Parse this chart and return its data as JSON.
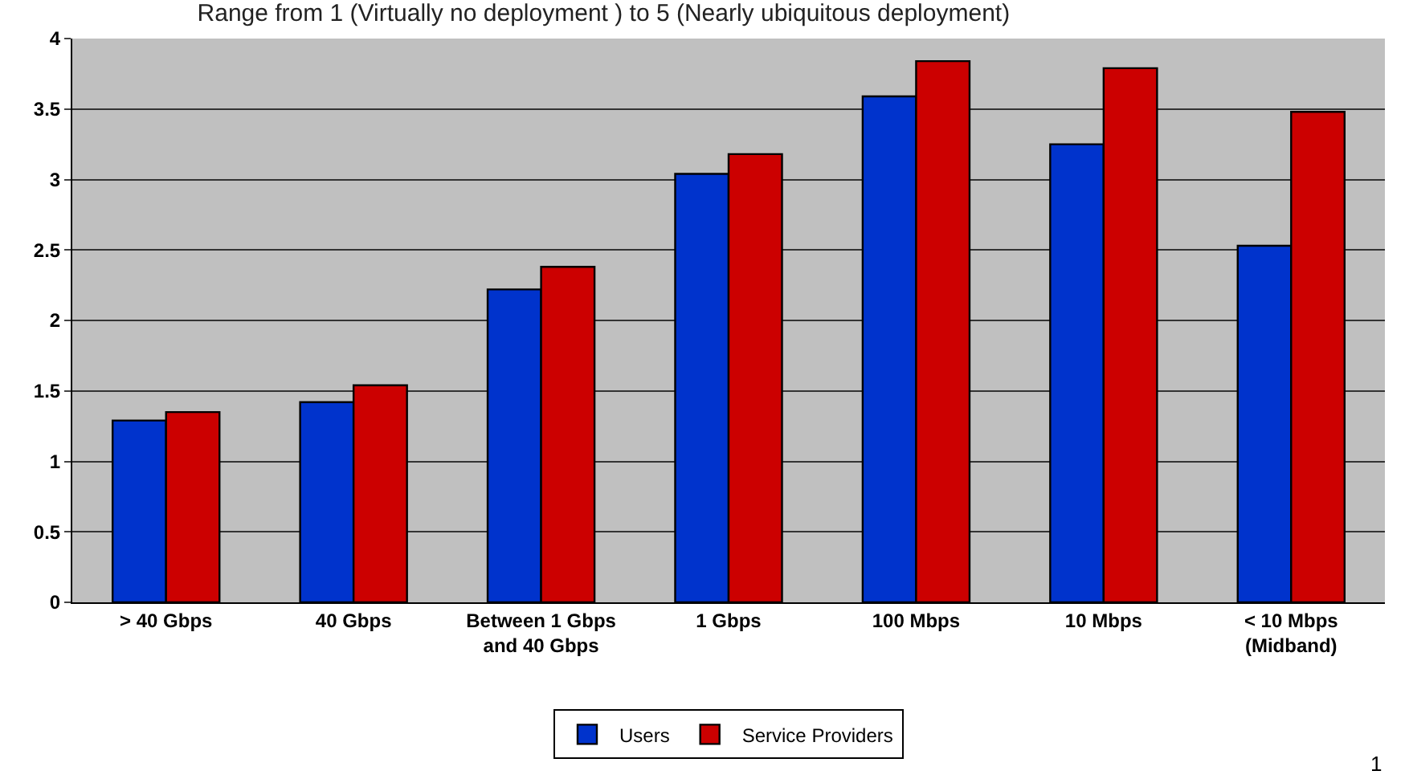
{
  "chart_data": {
    "type": "bar",
    "title": "Range from 1 (Virtually no deployment ) to 5 (Nearly ubiquitous deployment)",
    "categories": [
      "> 40 Gbps",
      "40 Gbps",
      "Between 1 Gbps\nand 40 Gbps",
      "1 Gbps",
      "100 Mbps",
      "10 Mbps",
      "< 10 Mbps\n(Midband)"
    ],
    "series": [
      {
        "name": "Users",
        "color": "#0033cc",
        "values": [
          1.29,
          1.42,
          2.22,
          3.04,
          3.59,
          3.25,
          2.53
        ]
      },
      {
        "name": "Service Providers",
        "color": "#cc0000",
        "values": [
          1.35,
          1.54,
          2.38,
          3.18,
          3.84,
          3.79,
          3.48
        ]
      }
    ],
    "ylim": [
      0,
      4
    ],
    "yticks": [
      0,
      0.5,
      1,
      1.5,
      2,
      2.5,
      3,
      3.5,
      4
    ],
    "grid": "y",
    "legend": "bottom",
    "annotations": [
      "1"
    ]
  }
}
